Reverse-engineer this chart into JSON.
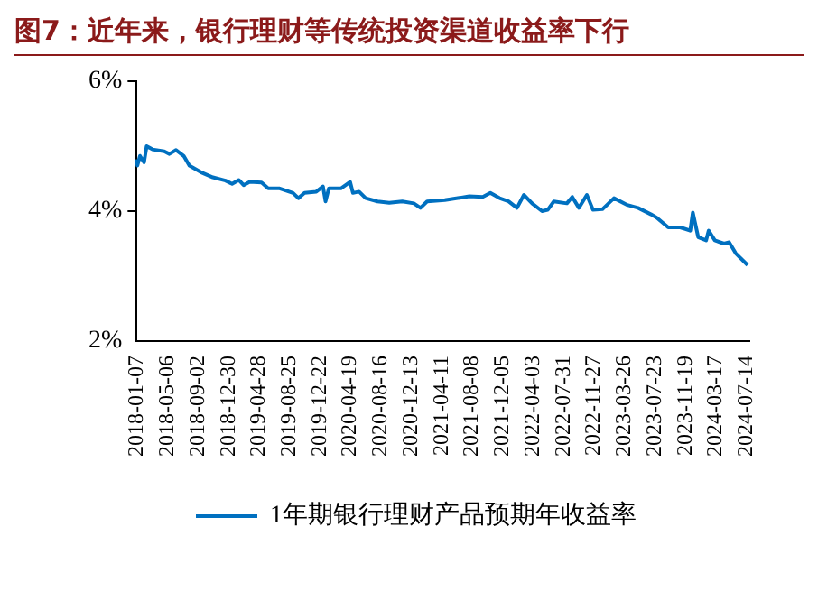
{
  "chart_data": {
    "type": "line",
    "title": "图7：近年来，银行理财等传统投资渠道收益率下行",
    "x": [
      "2018-01-07",
      "2018-01-10",
      "2018-01-20",
      "2018-02-05",
      "2018-02-15",
      "2018-03-10",
      "2018-04-25",
      "2018-05-15",
      "2018-06-10",
      "2018-07-10",
      "2018-08-01",
      "2018-09-15",
      "2018-11-01",
      "2018-12-20",
      "2019-01-15",
      "2019-02-10",
      "2019-03-01",
      "2019-03-25",
      "2019-05-10",
      "2019-06-05",
      "2019-07-20",
      "2019-09-10",
      "2019-10-01",
      "2019-10-25",
      "2019-12-10",
      "2020-01-05",
      "2020-01-15",
      "2020-01-28",
      "2020-03-15",
      "2020-04-20",
      "2020-05-01",
      "2020-05-25",
      "2020-06-20",
      "2020-08-05",
      "2020-09-20",
      "2020-11-10",
      "2020-12-25",
      "2021-01-20",
      "2021-02-15",
      "2021-04-25",
      "2021-06-15",
      "2021-07-30",
      "2021-09-20",
      "2021-10-20",
      "2021-11-25",
      "2021-12-30",
      "2022-02-01",
      "2022-02-28",
      "2022-04-01",
      "2022-05-10",
      "2022-06-01",
      "2022-06-25",
      "2022-08-15",
      "2022-09-05",
      "2022-10-01",
      "2022-11-01",
      "2022-11-25",
      "2023-01-01",
      "2023-02-15",
      "2023-04-05",
      "2023-05-20",
      "2023-07-10",
      "2023-08-01",
      "2023-09-15",
      "2023-11-01",
      "2023-12-10",
      "2023-12-20",
      "2024-01-10",
      "2024-02-10",
      "2024-02-20",
      "2024-03-15",
      "2024-04-20",
      "2024-05-10",
      "2024-06-05",
      "2024-07-21"
    ],
    "series": [
      {
        "name": "1年期银行理财产品预期年收益率",
        "color": "#0070c0",
        "values": [
          4.8,
          4.7,
          4.85,
          4.75,
          5.0,
          4.95,
          4.92,
          4.88,
          4.94,
          4.85,
          4.7,
          4.6,
          4.52,
          4.47,
          4.42,
          4.48,
          4.4,
          4.45,
          4.44,
          4.35,
          4.35,
          4.28,
          4.2,
          4.28,
          4.3,
          4.38,
          4.15,
          4.35,
          4.35,
          4.45,
          4.28,
          4.3,
          4.2,
          4.15,
          4.13,
          4.15,
          4.12,
          4.05,
          4.15,
          4.17,
          4.2,
          4.23,
          4.22,
          4.28,
          4.2,
          4.15,
          4.05,
          4.25,
          4.12,
          4.0,
          4.02,
          4.15,
          4.12,
          4.22,
          4.05,
          4.25,
          4.02,
          4.03,
          4.2,
          4.1,
          4.05,
          3.95,
          3.9,
          3.75,
          3.75,
          3.7,
          3.98,
          3.6,
          3.55,
          3.7,
          3.55,
          3.5,
          3.52,
          3.35,
          3.17
        ]
      }
    ],
    "xlim": [
      "2018-01-07",
      "2024-07-28"
    ],
    "xticks": [
      "2018-01-07",
      "2018-05-06",
      "2018-09-02",
      "2018-12-30",
      "2019-04-28",
      "2019-08-25",
      "2019-12-22",
      "2020-04-19",
      "2020-08-16",
      "2020-12-13",
      "2021-04-11",
      "2021-08-08",
      "2021-12-05",
      "2022-04-03",
      "2022-07-31",
      "2022-11-27",
      "2023-03-26",
      "2023-07-23",
      "2023-11-19",
      "2024-03-17",
      "2024-07-14"
    ],
    "ylim": [
      2,
      6
    ],
    "yticks": [
      {
        "value": 2,
        "label": "2%"
      },
      {
        "value": 4,
        "label": "4%"
      },
      {
        "value": 6,
        "label": "6%"
      }
    ],
    "grid": false,
    "legend": "bottom",
    "marker": "none",
    "line_style": "solid"
  }
}
